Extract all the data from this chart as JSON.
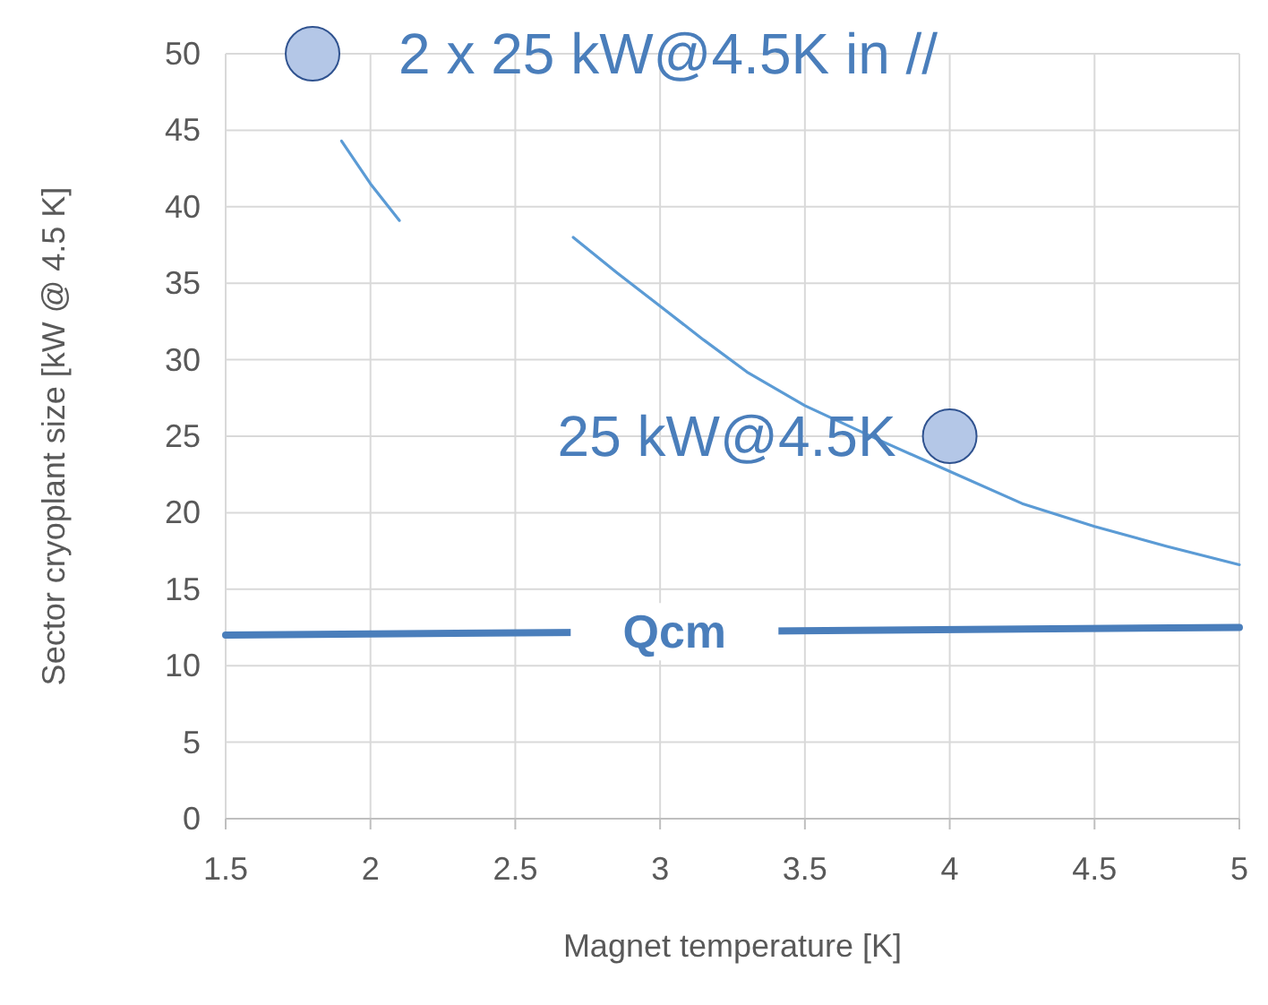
{
  "chart_data": {
    "type": "line",
    "xlabel": "Magnet temperature [K]",
    "ylabel": "Sector cryoplant size [kW @ 4.5 K]",
    "xlim": [
      1.5,
      5
    ],
    "xticks": [
      1.5,
      2,
      2.5,
      3,
      3.5,
      4,
      4.5,
      5
    ],
    "ylim": [
      0,
      50
    ],
    "yticks": [
      0,
      5,
      10,
      15,
      20,
      25,
      30,
      35,
      40,
      45,
      50
    ],
    "grid": true,
    "line_style": "solid",
    "series": [
      {
        "color": "#5b9bd5",
        "x": [
          1.9,
          2.0,
          2.1
        ],
        "values": [
          44.3,
          41.5,
          39.1
        ]
      },
      {
        "color": "#5b9bd5",
        "x": [
          2.7,
          2.85,
          3.0,
          3.15,
          3.3,
          3.5,
          3.75,
          4.0,
          4.25,
          4.5,
          4.75,
          5.0
        ],
        "values": [
          38.0,
          35.7,
          33.5,
          31.3,
          29.2,
          27.0,
          24.8,
          22.7,
          20.6,
          19.1,
          17.8,
          16.6
        ]
      },
      {
        "name": "Qcm",
        "color": "#4a7ebb",
        "x": [
          1.5,
          5.0
        ],
        "values": [
          12.0,
          12.5
        ]
      },
      {
        "type": "scatter",
        "color": "#b4c7e7",
        "marker": "circle",
        "x": [
          1.8,
          4.0
        ],
        "values": [
          50,
          25
        ]
      }
    ],
    "annotations": [
      {
        "text": "2 x 25 kW@4.5K in //",
        "x": 1.8,
        "y": 50
      },
      {
        "text": "25 kW@4.5K",
        "x": 4.0,
        "y": 25
      }
    ]
  }
}
